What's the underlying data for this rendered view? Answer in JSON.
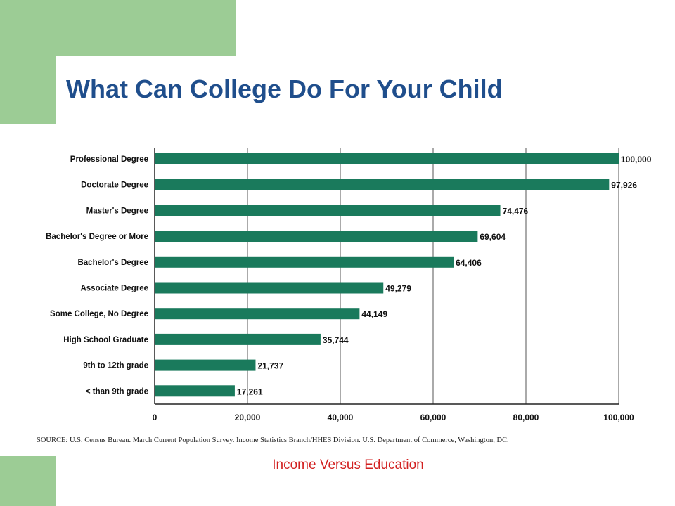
{
  "slide": {
    "title": "What Can College Do For Your Child",
    "source": "SOURCE: U.S. Census Bureau. March Current Population Survey. Income Statistics Branch/HHES Division. U.S. Department of Commerce, Washington, DC.",
    "caption": "Income Versus Education"
  },
  "colors": {
    "title": "#1f4e8c",
    "bar": "#1a7a5c",
    "caption": "#d22020",
    "decoration": "#9ccc95"
  },
  "chart_data": {
    "type": "bar",
    "orientation": "horizontal",
    "categories": [
      "Professional Degree",
      "Doctorate Degree",
      "Master's Degree",
      "Bachelor's Degree or More",
      "Bachelor's Degree",
      "Associate Degree",
      "Some College, No Degree",
      "High School Graduate",
      "9th to 12th grade",
      "< than 9th grade"
    ],
    "values": [
      100000,
      97926,
      74476,
      69604,
      64406,
      49279,
      44149,
      35744,
      21737,
      17261
    ],
    "value_labels": [
      "100,000",
      "97,926",
      "74,476",
      "69,604",
      "64,406",
      "49,279",
      "44,149",
      "35,744",
      "21,737",
      "17,261"
    ],
    "xlim": [
      0,
      100000
    ],
    "xticks": [
      0,
      20000,
      40000,
      60000,
      80000,
      100000
    ],
    "xtick_labels": [
      "0",
      "20,000",
      "40,000",
      "60,000",
      "80,000",
      "100,000"
    ],
    "grid": true
  }
}
